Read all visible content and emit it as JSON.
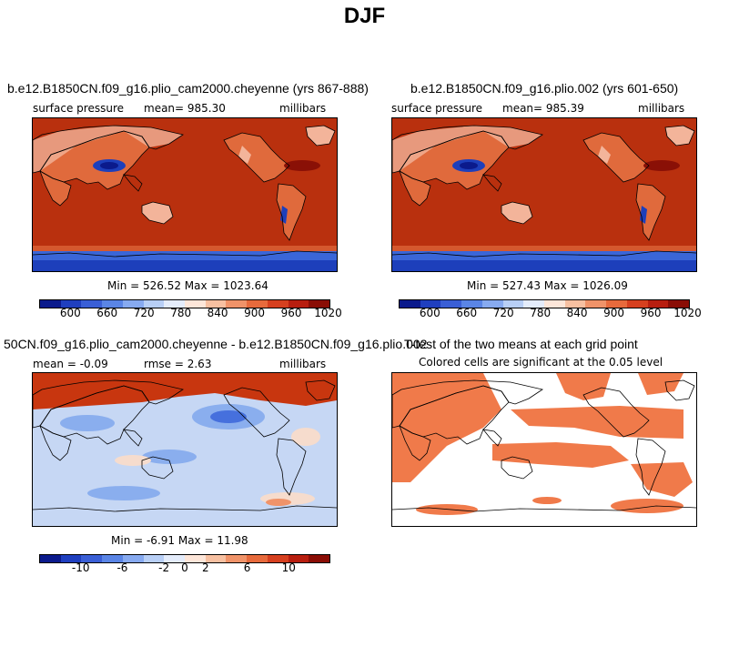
{
  "figure": {
    "title": "DJF"
  },
  "panels": {
    "top_left": {
      "title": "b.e12.B1850CN.f09_g16.plio_cam2000.cheyenne (yrs 867-888)",
      "variable": "surface pressure",
      "mean": "mean= 985.30",
      "units": "millibars",
      "stats": "Min = 526.52 Max = 1023.64"
    },
    "top_right": {
      "title": "b.e12.B1850CN.f09_g16.plio.002 (yrs 601-650)",
      "variable": "surface pressure",
      "mean": "mean= 985.39",
      "units": "millibars",
      "stats": "Min = 527.43 Max = 1026.09"
    },
    "bottom_left": {
      "title": "50CN.f09_g16.plio_cam2000.cheyenne - b.e12.B1850CN.f09_g16.plio.002",
      "mean": "mean = -0.09",
      "rmse": "rmse = 2.63",
      "units": "millibars",
      "stats": "Min = -6.91 Max = 11.98"
    },
    "bottom_right": {
      "title": "T-test of the two means at each grid point",
      "subtitle": "Colored cells are significant at the 0.05 level"
    }
  },
  "colorbars": {
    "absolute": {
      "colors": [
        "#0b1a8c",
        "#1f3fbf",
        "#3a5fd6",
        "#5a85e6",
        "#87aaf0",
        "#b8cff6",
        "#e4ecfb",
        "#fde6d9",
        "#f7c0a1",
        "#f09369",
        "#e76a3c",
        "#d6401f",
        "#b81e0f",
        "#8a0d05"
      ],
      "ticks": [
        "600",
        "660",
        "720",
        "780",
        "840",
        "900",
        "960",
        "1020"
      ]
    },
    "difference": {
      "colors": [
        "#0b1a8c",
        "#1f3fbf",
        "#3a5fd6",
        "#5a85e6",
        "#87aaf0",
        "#b8cff6",
        "#e4ecfb",
        "#fde6d9",
        "#f7c0a1",
        "#f09369",
        "#e76a3c",
        "#d6401f",
        "#b81e0f",
        "#8a0d05"
      ],
      "ticks": [
        "-10",
        "-6",
        "-2",
        "0",
        "2",
        "6",
        "10"
      ]
    }
  },
  "colors": {
    "abs_background": "#b9300e",
    "abs_high": "#8a1006",
    "abs_land_mid": "#e06a3c",
    "abs_land_light": "#f3b49a",
    "abs_low": "#1d3fbb",
    "abs_ice": "#3a66d8",
    "diff_positive": "#c8360f",
    "diff_light_blue": "#c6d7f4",
    "diff_mid_blue": "#8aaeee",
    "diff_dark_blue": "#4670dd",
    "diff_light_pink": "#f6dccd",
    "ttest_fill": "#f07a4a"
  }
}
